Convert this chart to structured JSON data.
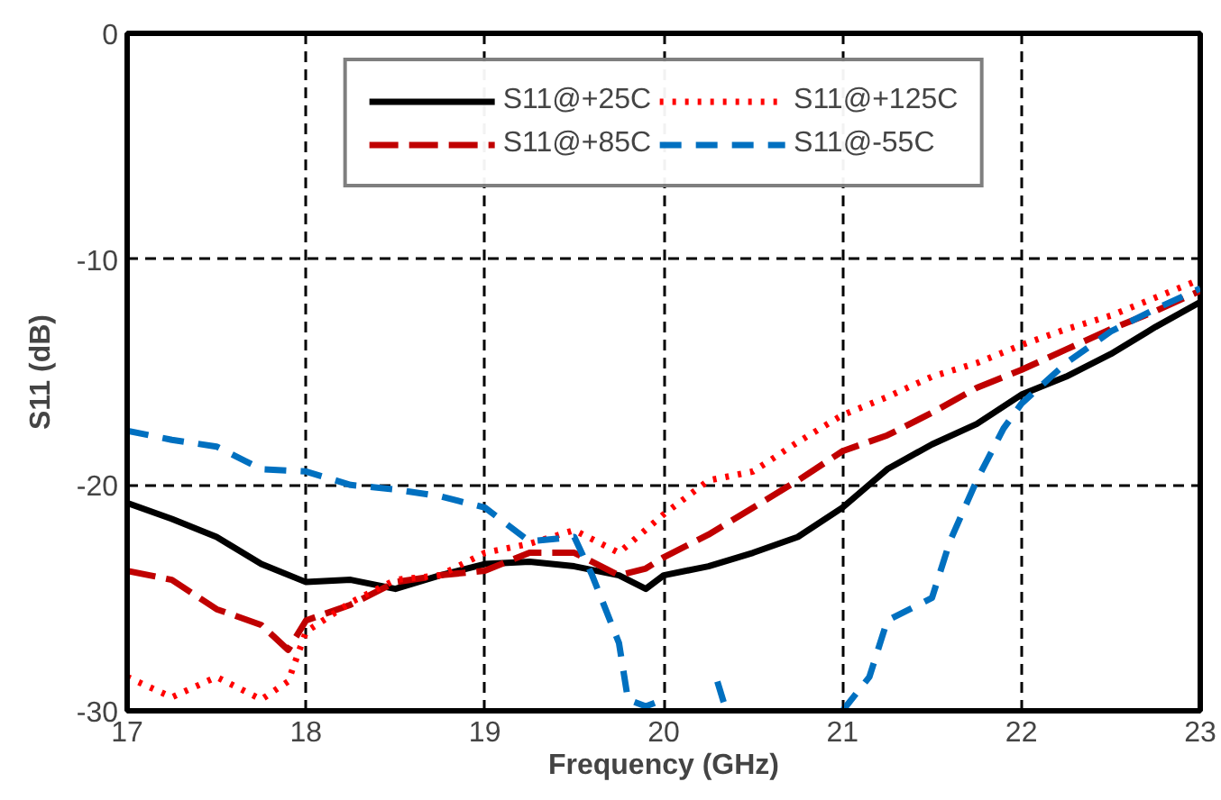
{
  "chart_data": {
    "type": "line",
    "xlabel": "Frequency (GHz)",
    "ylabel": "S11 (dB)",
    "xlim": [
      17,
      23
    ],
    "ylim": [
      -30,
      0
    ],
    "xticks": [
      17,
      18,
      19,
      20,
      21,
      22,
      23
    ],
    "yticks": [
      -30,
      -20,
      -10,
      0
    ],
    "grid": true,
    "legend": "top",
    "marker": "none",
    "series": [
      {
        "name": "S11@+25C",
        "color": "#000000",
        "line_style": "solid",
        "x": [
          17,
          17.25,
          17.5,
          17.75,
          18,
          18.25,
          18.5,
          18.75,
          19,
          19.25,
          19.5,
          19.75,
          19.9,
          20,
          20.25,
          20.5,
          20.75,
          21,
          21.25,
          21.5,
          21.75,
          22,
          22.25,
          22.5,
          22.75,
          23
        ],
        "values": [
          -20.8,
          -21.5,
          -22.3,
          -23.5,
          -24.3,
          -24.2,
          -24.6,
          -24.0,
          -23.5,
          -23.4,
          -23.6,
          -24.0,
          -24.6,
          -24.0,
          -23.6,
          -23.0,
          -22.3,
          -21.0,
          -19.3,
          -18.2,
          -17.3,
          -16.0,
          -15.2,
          -14.2,
          -13.0,
          -11.9
        ]
      },
      {
        "name": "S11@+85C",
        "color": "#c00000",
        "line_style": "dashed_long",
        "x": [
          17,
          17.25,
          17.5,
          17.75,
          17.9,
          18,
          18.25,
          18.5,
          18.75,
          19,
          19.25,
          19.5,
          19.75,
          19.9,
          20,
          20.25,
          20.5,
          20.75,
          21,
          21.25,
          21.5,
          21.75,
          22,
          22.25,
          22.5,
          22.75,
          23
        ],
        "values": [
          -23.8,
          -24.2,
          -25.5,
          -26.2,
          -27.3,
          -26.0,
          -25.3,
          -24.3,
          -24.0,
          -23.8,
          -23.0,
          -23.0,
          -24.0,
          -23.7,
          -23.2,
          -22.2,
          -21.0,
          -19.8,
          -18.5,
          -17.8,
          -16.8,
          -15.7,
          -14.9,
          -14.0,
          -13.1,
          -12.3,
          -11.4
        ]
      },
      {
        "name": "S11@+125C",
        "color": "#ff0000",
        "line_style": "dotted",
        "x": [
          17,
          17.25,
          17.5,
          17.75,
          17.9,
          18,
          18.25,
          18.5,
          18.75,
          19,
          19.25,
          19.5,
          19.75,
          20,
          20.25,
          20.5,
          20.75,
          21,
          21.25,
          21.5,
          21.75,
          22,
          22.25,
          22.5,
          22.75,
          23
        ],
        "values": [
          -28.5,
          -29.4,
          -28.5,
          -29.5,
          -28.7,
          -26.5,
          -25.2,
          -24.2,
          -24.0,
          -23.0,
          -22.6,
          -22.0,
          -23.0,
          -21.3,
          -19.8,
          -19.4,
          -18.1,
          -16.9,
          -16.1,
          -15.2,
          -14.6,
          -13.8,
          -13.1,
          -12.5,
          -11.7,
          -10.9
        ]
      },
      {
        "name": "S11@-55C",
        "color": "#0070c0",
        "line_style": "dashed",
        "x": [
          17,
          17.25,
          17.5,
          17.75,
          18,
          18.25,
          18.5,
          18.75,
          19,
          19.25,
          19.5,
          19.6,
          19.75,
          19.8,
          19.9,
          20,
          20.15,
          20.3,
          20.35,
          20.6,
          21,
          21.15,
          21.25,
          21.5,
          21.6,
          21.75,
          21.9,
          22,
          22.25,
          22.5,
          22.75,
          23
        ],
        "values": [
          -17.6,
          -18.0,
          -18.3,
          -19.3,
          -19.4,
          -20.0,
          -20.2,
          -20.5,
          -21.0,
          -22.5,
          -22.3,
          -24.0,
          -27.0,
          -29.5,
          -29.8,
          -29.5,
          null,
          -28.7,
          -30.0,
          null,
          -30.0,
          -28.5,
          -26.0,
          -25.0,
          -22.5,
          -19.8,
          -17.5,
          -16.4,
          -14.6,
          -13.2,
          -12.2,
          -11.3
        ]
      }
    ]
  }
}
